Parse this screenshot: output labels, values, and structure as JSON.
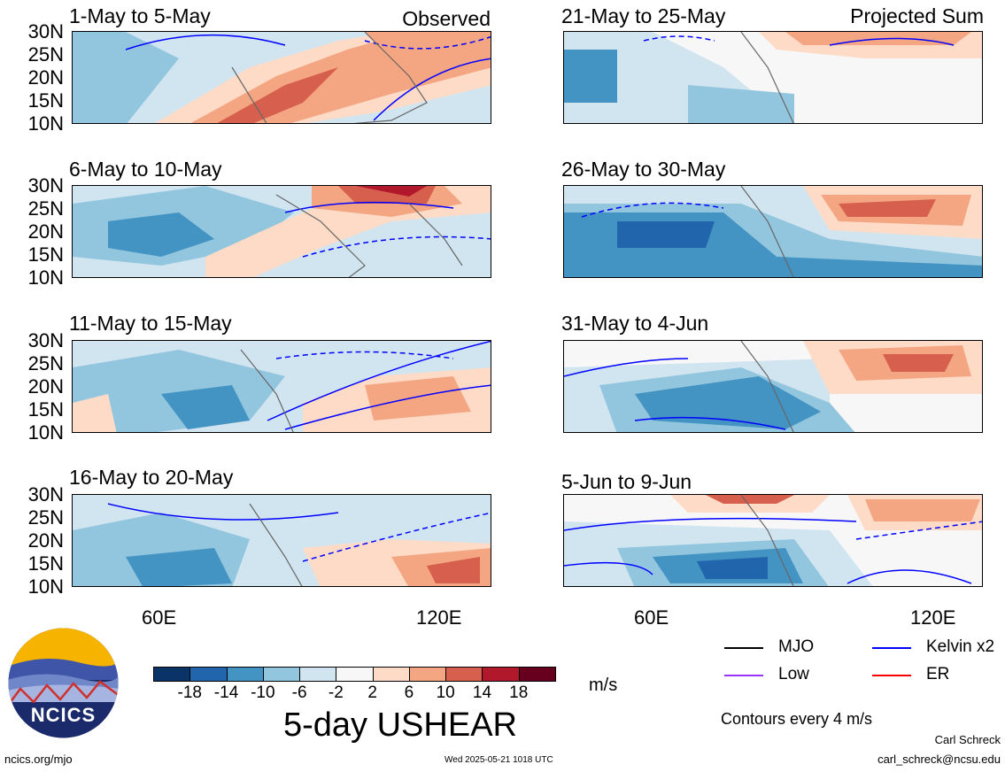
{
  "panels_left": [
    {
      "title": "1-May to 5-May",
      "label": "Observed"
    },
    {
      "title": "6-May to 10-May",
      "label": ""
    },
    {
      "title": "11-May to 15-May",
      "label": ""
    },
    {
      "title": "16-May to 20-May",
      "label": ""
    }
  ],
  "panels_right": [
    {
      "title": "21-May to 25-May",
      "label": "Projected Sum"
    },
    {
      "title": "26-May to 30-May",
      "label": ""
    },
    {
      "title": "31-May to 4-Jun",
      "label": ""
    },
    {
      "title": "5-Jun to 9-Jun",
      "label": ""
    }
  ],
  "lat_labels": [
    "30N",
    "25N",
    "20N",
    "15N",
    "10N"
  ],
  "lon_labels": [
    "60E",
    "120E"
  ],
  "colorbar": {
    "ticks": [
      "-18",
      "-14",
      "-10",
      "-6",
      "-2",
      "2",
      "6",
      "10",
      "14",
      "18"
    ],
    "colors": [
      "#0a3467",
      "#2166ac",
      "#4393c3",
      "#92c5de",
      "#d1e5f0",
      "#f7f7f7",
      "#fddbc7",
      "#f4a582",
      "#d6604d",
      "#b2182b",
      "#67001f"
    ],
    "units": "m/s",
    "title": "5-day USHEAR"
  },
  "legend": {
    "items": [
      {
        "label": "MJO",
        "color": "#000000"
      },
      {
        "label": "Kelvin x2",
        "color": "#0000ff"
      },
      {
        "label": "Low",
        "color": "#9933ff"
      },
      {
        "label": "ER",
        "color": "#ff0000"
      }
    ],
    "note": "Contours every 4 m/s"
  },
  "logo": {
    "text": "NCICS"
  },
  "footer": {
    "url": "ncics.org/mjo",
    "timestamp": "Wed 2025-05-21 1018 UTC",
    "author": "Carl Schreck",
    "email": "carl_schreck@ncsu.edu"
  }
}
